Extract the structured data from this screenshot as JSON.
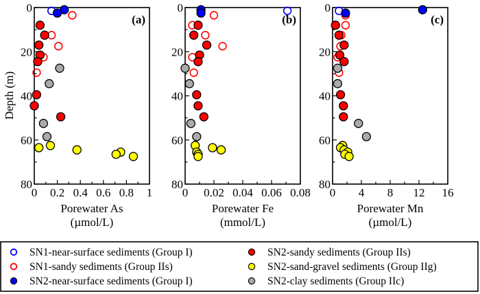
{
  "figure": {
    "ylabel": "Depth (m)",
    "legend": {
      "placement": "bottom",
      "entries": [
        {
          "key": "sn1_near",
          "label": "SN1-near-surface sediments (Group I)",
          "fill": "none",
          "stroke": "#0000ff"
        },
        {
          "key": "sn1_sandy",
          "label": "SN1-sandy sediments (Group IIs)",
          "fill": "none",
          "stroke": "#ff0000"
        },
        {
          "key": "sn2_near",
          "label": "SN2-near-surface sediments (Group I)",
          "fill": "#0000ff",
          "stroke": "#000000"
        },
        {
          "key": "sn2_sandy",
          "label": "SN2-sandy sediments (Group IIs)",
          "fill": "#ff0000",
          "stroke": "#000000"
        },
        {
          "key": "sn2_gravel",
          "label": "SN2-sand-gravel sediments (Group IIg)",
          "fill": "#ffff00",
          "stroke": "#000000"
        },
        {
          "key": "sn2_clay",
          "label": "SN2-clay sediments (Group IIc)",
          "fill": "#aaaaaa",
          "stroke": "#000000"
        }
      ]
    }
  },
  "chart_data": [
    {
      "type": "scatter",
      "panel": "(a)",
      "title": "",
      "xlabel": "Porewater As",
      "xunit": "(µmol/L)",
      "ylabel": "Depth (m)",
      "xlim": [
        0,
        1
      ],
      "ylim": [
        80,
        0
      ],
      "xticks": [
        0,
        0.2,
        0.4,
        0.6,
        0.8,
        1
      ],
      "xtick_labels": [
        "0",
        "0.2",
        "0.4",
        "0.6",
        "0.8",
        "1"
      ],
      "yticks": [
        0,
        20,
        40,
        60,
        80
      ],
      "ytick_labels": [
        "0",
        "20",
        "40",
        "60",
        "80"
      ],
      "grid": false,
      "series": [
        {
          "key": "sn1_near",
          "points": [
            [
              0.15,
              1.5
            ]
          ]
        },
        {
          "key": "sn1_sandy",
          "points": [
            [
              0.33,
              3.5
            ],
            [
              0.05,
              8
            ],
            [
              0.15,
              12.5
            ],
            [
              0.21,
              17.5
            ],
            [
              0.08,
              22.5
            ],
            [
              0.02,
              29.5
            ]
          ]
        },
        {
          "key": "sn2_near",
          "points": [
            [
              0.26,
              1
            ],
            [
              0.2,
              2.5
            ]
          ]
        },
        {
          "key": "sn2_sandy",
          "points": [
            [
              0.05,
              8
            ],
            [
              0.09,
              12.5
            ],
            [
              0.04,
              17
            ],
            [
              0.05,
              21.5
            ],
            [
              0.03,
              24.5
            ],
            [
              0.02,
              39.5
            ],
            [
              0.0,
              44.5
            ],
            [
              0.23,
              49.5
            ]
          ]
        },
        {
          "key": "sn2_clay",
          "points": [
            [
              0.22,
              27.5
            ],
            [
              0.13,
              34.5
            ],
            [
              0.08,
              52.5
            ],
            [
              0.11,
              58.5
            ]
          ]
        },
        {
          "key": "sn2_gravel",
          "points": [
            [
              0.14,
              62.5
            ],
            [
              0.04,
              63.5
            ],
            [
              0.37,
              64.5
            ],
            [
              0.75,
              65.5
            ],
            [
              0.71,
              66.5
            ],
            [
              0.86,
              67.5
            ]
          ]
        }
      ]
    },
    {
      "type": "scatter",
      "panel": "(b)",
      "title": "",
      "xlabel": "Porewater Fe",
      "xunit": "(mmol/L)",
      "ylabel": "",
      "xlim": [
        0,
        0.08
      ],
      "ylim": [
        80,
        0
      ],
      "xticks": [
        0,
        0.02,
        0.04,
        0.06,
        0.08
      ],
      "xtick_labels": [
        "0",
        "0.02",
        "0.04",
        "0.06",
        "0.08"
      ],
      "yticks": [
        0,
        20,
        40,
        60,
        80
      ],
      "ytick_labels": [
        "0",
        "20",
        "40",
        "60",
        "80"
      ],
      "grid": false,
      "series": [
        {
          "key": "sn1_near",
          "points": [
            [
              0.071,
              1.5
            ]
          ]
        },
        {
          "key": "sn1_sandy",
          "points": [
            [
              0.02,
              3.5
            ],
            [
              0.005,
              8
            ],
            [
              0.014,
              12.5
            ],
            [
              0.026,
              17.5
            ],
            [
              0.005,
              22.5
            ],
            [
              0.006,
              29.5
            ]
          ]
        },
        {
          "key": "sn2_near",
          "points": [
            [
              0.011,
              1
            ],
            [
              0.011,
              2.5
            ]
          ]
        },
        {
          "key": "sn2_sandy",
          "points": [
            [
              0.009,
              8
            ],
            [
              0.006,
              12.5
            ],
            [
              0.015,
              17
            ],
            [
              0.01,
              21.5
            ],
            [
              0.009,
              24.5
            ],
            [
              0.008,
              39.5
            ],
            [
              0.009,
              44.5
            ],
            [
              0.013,
              49.5
            ]
          ]
        },
        {
          "key": "sn2_clay",
          "points": [
            [
              0.0,
              27.5
            ],
            [
              0.003,
              34.5
            ],
            [
              0.004,
              52.5
            ],
            [
              0.008,
              58.5
            ]
          ]
        },
        {
          "key": "sn2_gravel",
          "points": [
            [
              0.007,
              62.5
            ],
            [
              0.019,
              63.5
            ],
            [
              0.025,
              64.5
            ],
            [
              0.008,
              65.5
            ],
            [
              0.009,
              66.5
            ],
            [
              0.009,
              67.5
            ]
          ]
        }
      ]
    },
    {
      "type": "scatter",
      "panel": "(c)",
      "title": "",
      "xlabel": "Porewater Mn",
      "xunit": "(µmol/L)",
      "ylabel": "",
      "xlim": [
        0,
        16
      ],
      "ylim": [
        80,
        0
      ],
      "xticks": [
        0,
        4,
        8,
        12,
        16
      ],
      "xtick_labels": [
        "0",
        "4",
        "8",
        "12",
        "16"
      ],
      "yticks": [
        0,
        20,
        40,
        60,
        80
      ],
      "ytick_labels": [
        "0",
        "20",
        "40",
        "60",
        "80"
      ],
      "grid": false,
      "series": [
        {
          "key": "sn1_near",
          "points": [
            [
              0.9,
              1.5
            ]
          ]
        },
        {
          "key": "sn1_sandy",
          "points": [
            [
              1.8,
              3.5
            ],
            [
              1.8,
              8
            ],
            [
              1.2,
              12.5
            ],
            [
              1.1,
              17.5
            ],
            [
              0.7,
              22.5
            ],
            [
              0.9,
              29.5
            ]
          ]
        },
        {
          "key": "sn2_near",
          "points": [
            [
              12.5,
              1
            ],
            [
              1.8,
              2.5
            ]
          ]
        },
        {
          "key": "sn2_sandy",
          "points": [
            [
              0.4,
              8
            ],
            [
              0.9,
              12.5
            ],
            [
              1.6,
              17
            ],
            [
              1.0,
              21.5
            ],
            [
              1.6,
              24.5
            ],
            [
              1.1,
              39.5
            ],
            [
              1.5,
              44.5
            ],
            [
              1.5,
              49.5
            ]
          ]
        },
        {
          "key": "sn2_clay",
          "points": [
            [
              0.7,
              27.5
            ],
            [
              0.7,
              34.5
            ],
            [
              3.6,
              52.5
            ],
            [
              4.7,
              58.5
            ]
          ]
        },
        {
          "key": "sn2_gravel",
          "points": [
            [
              1.4,
              62.5
            ],
            [
              1.1,
              63.5
            ],
            [
              1.6,
              64.5
            ],
            [
              2.1,
              65.5
            ],
            [
              1.7,
              66.5
            ],
            [
              2.3,
              67.5
            ]
          ]
        }
      ]
    }
  ]
}
